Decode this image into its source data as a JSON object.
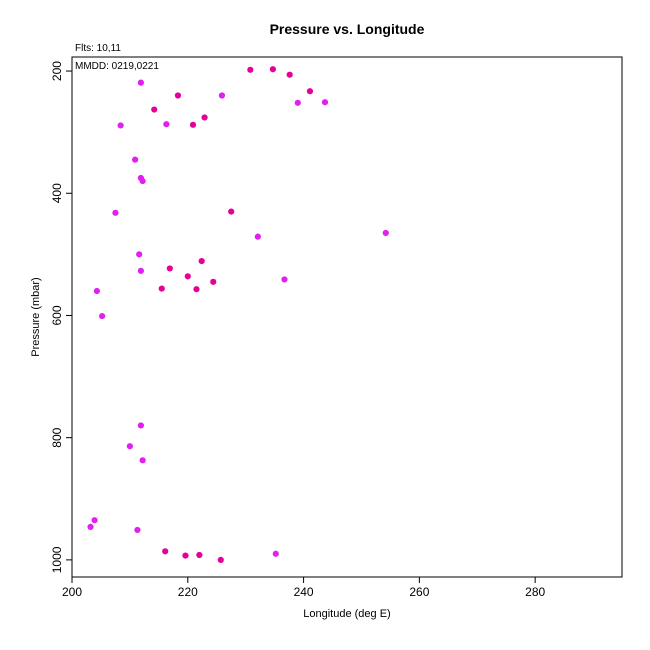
{
  "chart_data": {
    "type": "scatter",
    "title": "Pressure vs. Longitude",
    "xlabel": "Longitude (deg E)",
    "ylabel": "Pressure (mbar)",
    "xlim": [
      200,
      295
    ],
    "ylim": [
      1028,
      177
    ],
    "y_inverted": true,
    "grid": false,
    "x_ticks": [
      200,
      220,
      240,
      260,
      280
    ],
    "y_ticks": [
      200,
      400,
      600,
      800,
      1000
    ],
    "annotations": [
      "Flts: 10,11",
      "MMDD: 0219,0221"
    ],
    "series": [
      {
        "color": "#e6009a",
        "points": [
          [
            230.8,
            198
          ],
          [
            234.7,
            197
          ],
          [
            237.6,
            206
          ],
          [
            241.1,
            233
          ],
          [
            218.3,
            240
          ],
          [
            214.2,
            263
          ],
          [
            222.9,
            276
          ],
          [
            220.9,
            288
          ],
          [
            227.5,
            430
          ],
          [
            222.4,
            511
          ],
          [
            216.9,
            523
          ],
          [
            220.0,
            536
          ],
          [
            224.4,
            545
          ],
          [
            215.5,
            556
          ],
          [
            221.5,
            557
          ],
          [
            216.1,
            986
          ],
          [
            219.6,
            993
          ],
          [
            222.0,
            992
          ],
          [
            225.7,
            1000
          ]
        ]
      },
      {
        "color": "#e020f0",
        "points": [
          [
            211.9,
            219
          ],
          [
            225.9,
            240
          ],
          [
            239.0,
            252
          ],
          [
            243.7,
            251
          ],
          [
            208.4,
            289
          ],
          [
            216.3,
            287
          ],
          [
            210.9,
            345
          ],
          [
            211.9,
            375
          ],
          [
            212.2,
            380
          ],
          [
            207.5,
            432
          ],
          [
            232.1,
            471
          ],
          [
            254.2,
            465
          ],
          [
            211.6,
            500
          ],
          [
            211.9,
            527
          ],
          [
            236.7,
            541
          ],
          [
            204.3,
            560
          ],
          [
            205.2,
            601
          ],
          [
            211.9,
            780
          ],
          [
            210.0,
            814
          ],
          [
            212.2,
            837
          ],
          [
            203.9,
            935
          ],
          [
            203.2,
            946
          ],
          [
            211.3,
            951
          ],
          [
            235.2,
            990
          ]
        ]
      }
    ]
  }
}
